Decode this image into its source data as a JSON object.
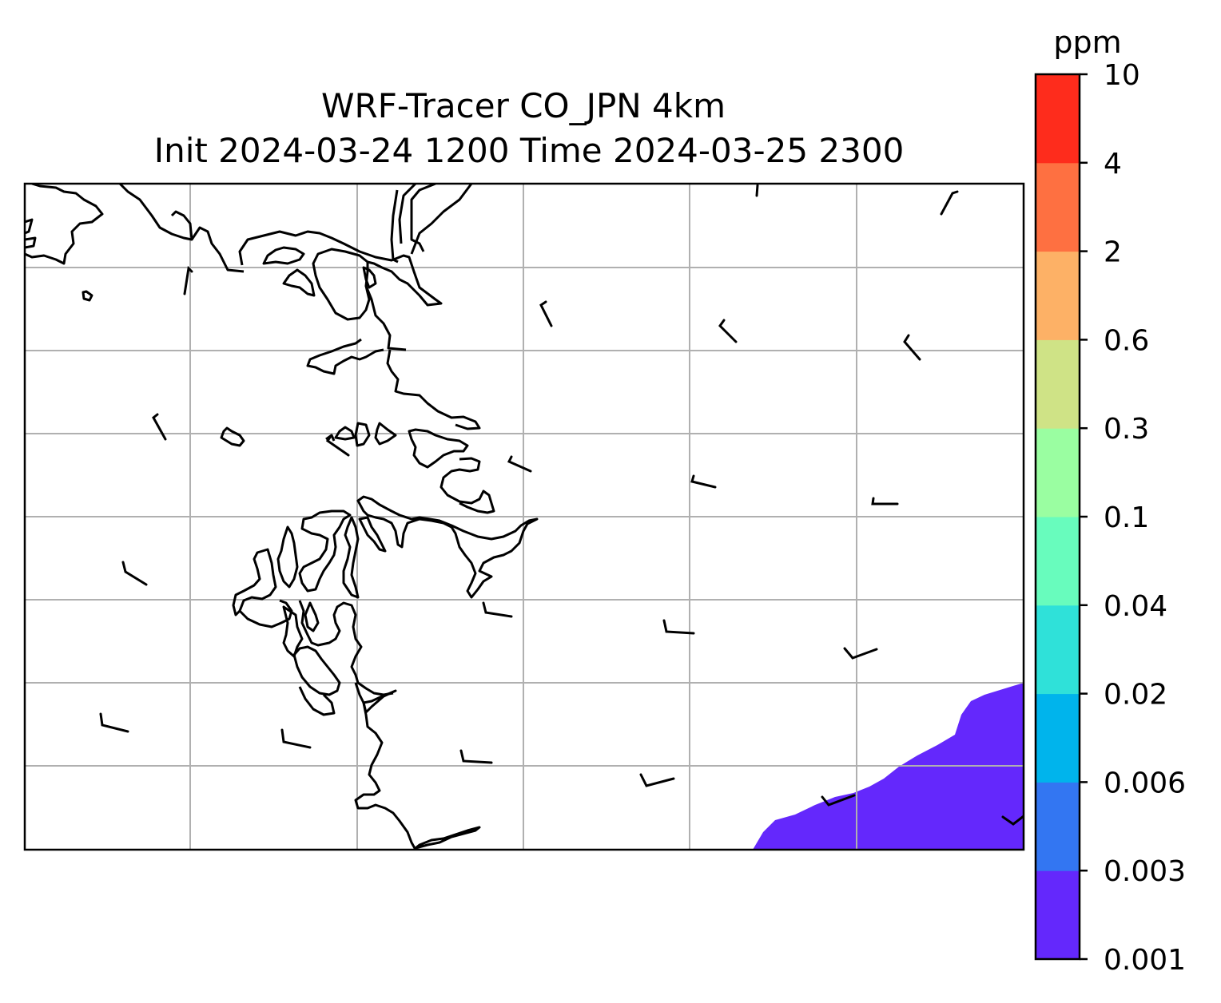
{
  "title": {
    "line1": "WRF-Tracer CO_JPN 4km",
    "line2": "Init 2024-03-24 1200 Time 2024-03-25 2300"
  },
  "colorbar": {
    "units": "ppm",
    "levels": [
      "0.001",
      "0.003",
      "0.006",
      "0.02",
      "0.04",
      "0.1",
      "0.3",
      "0.6",
      "2",
      "4",
      "10"
    ],
    "colors": [
      "#6428fc",
      "#3376f2",
      "#00b4ec",
      "#2fe1d9",
      "#68fcbd",
      "#9afea1",
      "#cfe386",
      "#fdb166",
      "#fe7041",
      "#fe2c1c"
    ]
  },
  "map": {
    "background": "#ffffff",
    "coastline_color": "#000000",
    "gridline_color": "#b0b0b0",
    "gridlines": true,
    "filled_region": {
      "description_level": "0.001-0.003",
      "color": "#6428fc",
      "location": "bottom-right corner"
    },
    "wind_barbs": {
      "count": 31,
      "color": "#000000"
    }
  }
}
